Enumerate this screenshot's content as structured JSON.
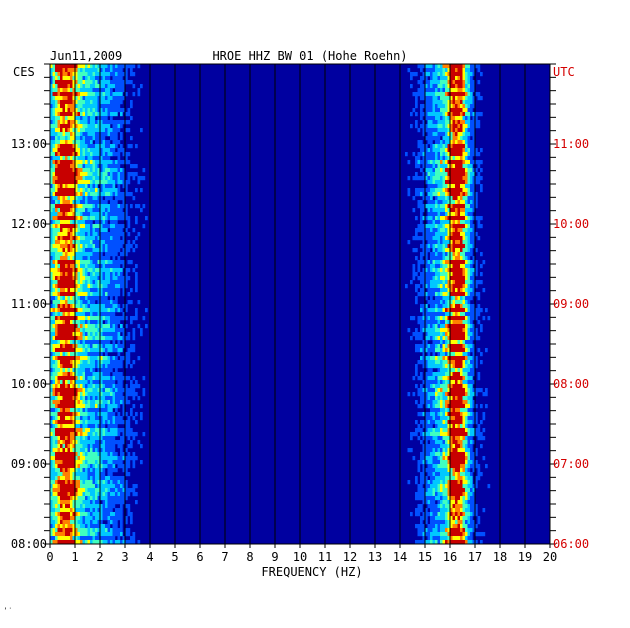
{
  "header": {
    "date": "Jun11,2009",
    "title": "HROE HHZ BW 01 (Hohe Roehn)",
    "left_zone": "CES",
    "right_zone": "UTC"
  },
  "footer": {
    "mark": "ʹ̇"
  },
  "colors": {
    "background": "#0000a0",
    "utc_label": "#d40000",
    "axis": "#000000"
  },
  "chart_data": {
    "type": "heatmap",
    "title": "HROE HHZ BW 01 (Hohe Roehn)",
    "date": "Jun11,2009",
    "xlabel": "FREQUENCY (HZ)",
    "xlim": [
      0,
      20
    ],
    "x_ticks": [
      "0",
      "1",
      "2",
      "3",
      "4",
      "5",
      "6",
      "7",
      "8",
      "9",
      "10",
      "11",
      "12",
      "13",
      "14",
      "15",
      "16",
      "17",
      "18",
      "19",
      "20"
    ],
    "y_left_label": "CES",
    "y_right_label": "UTC",
    "y_left_ticks": [
      "13:00",
      "12:00",
      "11:00",
      "10:00",
      "09:00",
      "08:00"
    ],
    "y_right_ticks": [
      "11:00",
      "10:00",
      "09:00",
      "08:00",
      "07:00",
      "06:00"
    ],
    "y_range_utc": [
      "06:00",
      "11:54"
    ],
    "colormap": [
      "#00007a",
      "#0000c8",
      "#0050ff",
      "#00c8ff",
      "#40ffc0",
      "#ffff00",
      "#ff8000",
      "#c80000"
    ],
    "bands": [
      {
        "name": "low-frequency noise",
        "center_hz": 0.6,
        "width_hz": 0.5,
        "intensity": 0.95
      },
      {
        "name": "low-frequency shoulder",
        "center_hz": 1.6,
        "width_hz": 1.4,
        "intensity": 0.35
      },
      {
        "name": "technical noise",
        "center_hz": 16.3,
        "width_hz": 0.35,
        "intensity": 0.9
      },
      {
        "name": "technical noise shoulder",
        "center_hz": 15.9,
        "width_hz": 1.0,
        "intensity": 0.4
      }
    ],
    "grid": true
  }
}
